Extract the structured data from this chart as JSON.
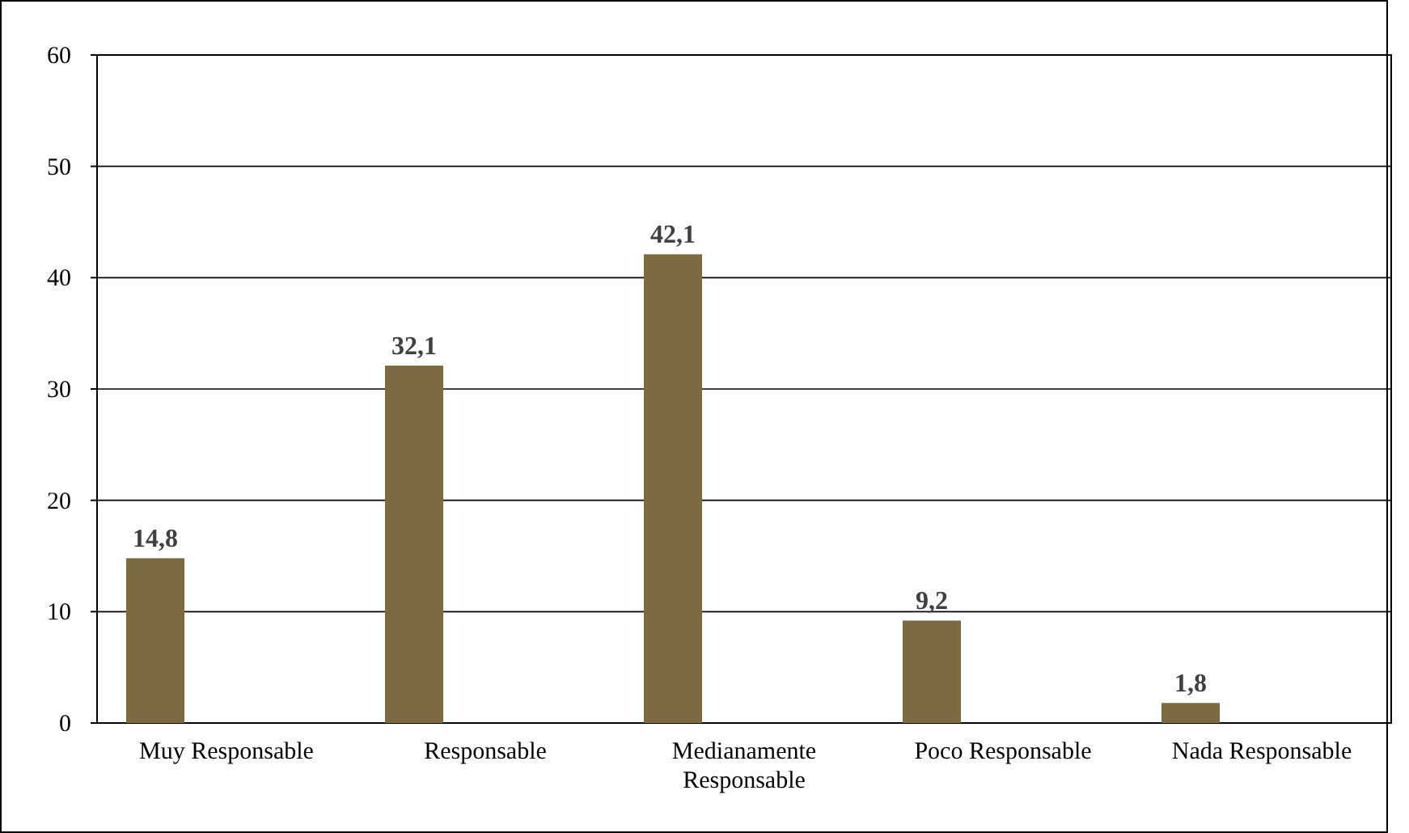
{
  "chart_data": {
    "type": "bar",
    "categories": [
      "Muy Responsable",
      "Responsable",
      "Medianamente Responsable",
      "Poco Responsable",
      "Nada Responsable"
    ],
    "values": [
      14.8,
      32.1,
      42.1,
      9.2,
      1.8
    ],
    "value_labels": [
      "14,8",
      "32,1",
      "42,1",
      "9,2",
      "1,8"
    ],
    "color": "#7d6a40",
    "ylim": [
      0,
      60
    ],
    "yticks": [
      0,
      10,
      20,
      30,
      40,
      50,
      60
    ],
    "grid": "y"
  }
}
